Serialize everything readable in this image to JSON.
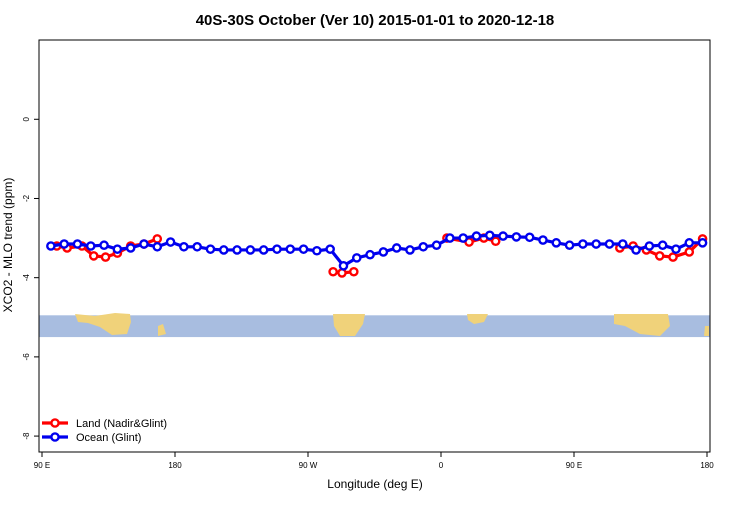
{
  "chart_data": {
    "type": "line",
    "title": "40S-30S October (Ver 10)   2015-01-01 to 2020-12-18",
    "xlabel": "Longitude (deg E)",
    "ylabel": "XCO2 - MLO trend (ppm)",
    "xlim": [
      90,
      540
    ],
    "ylim": [
      -8.2,
      1.8
    ],
    "x_tick_values": [
      90,
      180,
      270,
      360,
      450,
      540
    ],
    "x_tick_labels": [
      "90 E",
      "180",
      "90 W",
      "0",
      "90 E",
      "180"
    ],
    "y_tick_values": [
      0,
      -2,
      -4,
      -6,
      -8
    ],
    "y_tick_labels": [
      "0",
      "-2",
      "-4",
      "-6",
      "-8"
    ],
    "legend_position": "bottom-left",
    "grid": false,
    "colors": {
      "land": "#ff0000",
      "ocean": "#0000ee",
      "map_ocean": "#a8bde0",
      "map_land": "#f0d27a"
    },
    "map_strip": {
      "y_top": -4.95,
      "y_bottom": -5.5
    },
    "series": [
      {
        "name": "Land (Nadir&Glint)",
        "color": "#ff0000",
        "segments": [
          {
            "x": [
              100,
              107,
              117,
              125,
              133,
              141,
              150,
              159,
              168
            ],
            "y": [
              -3.2,
              -3.25,
              -3.2,
              -3.45,
              -3.48,
              -3.38,
              -3.2,
              -3.15,
              -3.02
            ]
          },
          {
            "x": [
              287,
              293,
              301
            ],
            "y": [
              -3.85,
              -3.88,
              -3.85
            ]
          },
          {
            "x": [
              364,
              379,
              389,
              397
            ],
            "y": [
              -3.0,
              -3.1,
              -3.0,
              -3.08
            ]
          },
          {
            "x": [
              481,
              490,
              499,
              508,
              517,
              528,
              537
            ],
            "y": [
              -3.25,
              -3.2,
              -3.3,
              -3.45,
              -3.48,
              -3.35,
              -3.02
            ]
          }
        ]
      },
      {
        "name": "Ocean (Glint)",
        "color": "#0000ee",
        "segments": [
          {
            "x": [
              96,
              105,
              114,
              123,
              132,
              141,
              150,
              159,
              168,
              177,
              186,
              195,
              204,
              213,
              222,
              231,
              240,
              249,
              258,
              267,
              276,
              285,
              294,
              303,
              312,
              321,
              330,
              339,
              348,
              357,
              366,
              375,
              384,
              393,
              402,
              411,
              420,
              429,
              438,
              447,
              456,
              465,
              474,
              483,
              492,
              501,
              510,
              519,
              528,
              537
            ],
            "y": [
              -3.2,
              -3.15,
              -3.15,
              -3.2,
              -3.18,
              -3.28,
              -3.25,
              -3.15,
              -3.22,
              -3.1,
              -3.22,
              -3.22,
              -3.28,
              -3.3,
              -3.3,
              -3.3,
              -3.3,
              -3.28,
              -3.28,
              -3.28,
              -3.32,
              -3.28,
              -3.7,
              -3.5,
              -3.42,
              -3.35,
              -3.25,
              -3.3,
              -3.22,
              -3.18,
              -3.0,
              -3.0,
              -2.95,
              -2.93,
              -2.95,
              -2.97,
              -2.98,
              -3.05,
              -3.12,
              -3.18,
              -3.15,
              -3.15,
              -3.15,
              -3.15,
              -3.3,
              -3.2,
              -3.18,
              -3.28,
              -3.12,
              -3.12
            ]
          }
        ]
      }
    ]
  }
}
